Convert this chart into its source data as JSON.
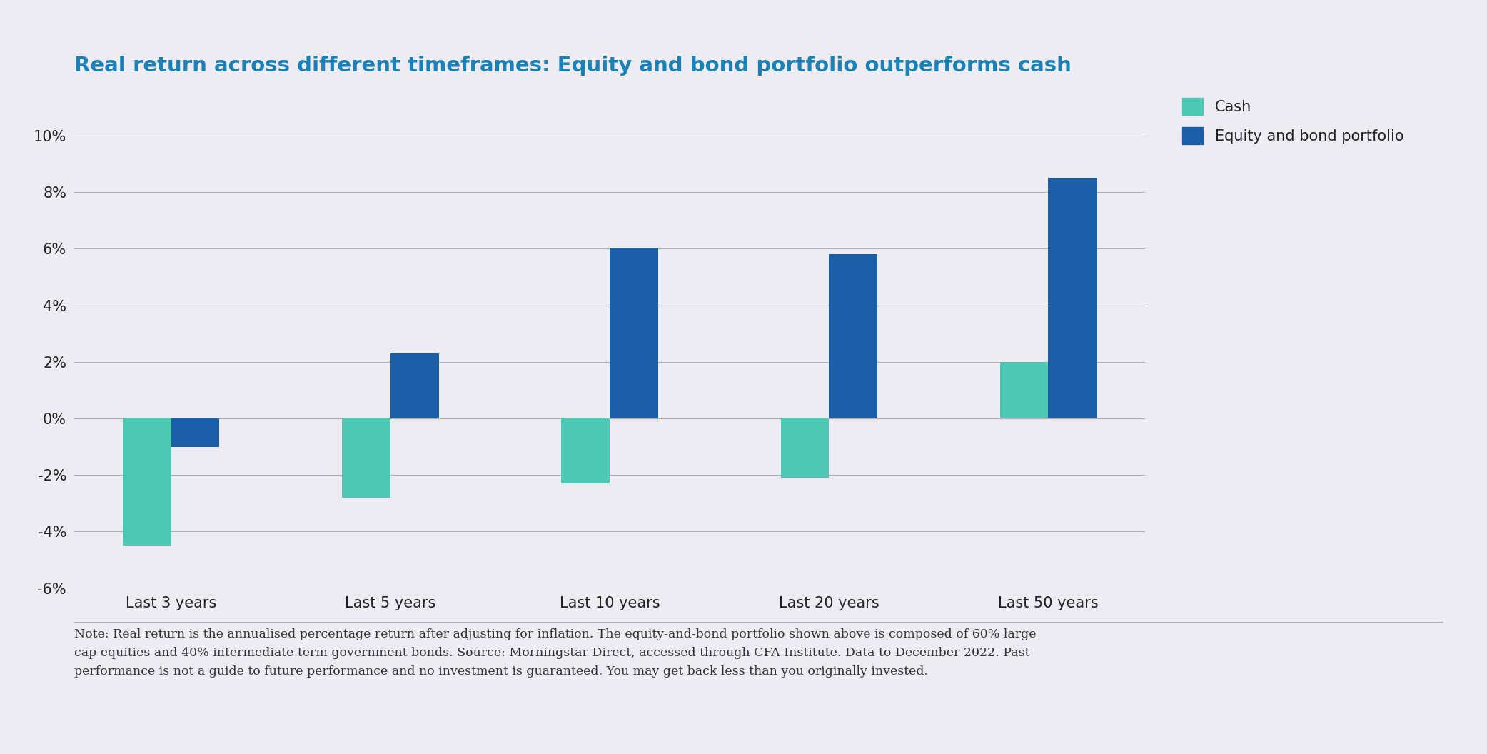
{
  "categories": [
    "Last 3 years",
    "Last 5 years",
    "Last 10 years",
    "Last 20 years",
    "Last 50 years"
  ],
  "cash_values": [
    -4.5,
    -2.8,
    -2.3,
    -2.1,
    2.0
  ],
  "equity_bond_values": [
    -1.0,
    2.3,
    6.0,
    5.8,
    8.5
  ],
  "cash_color": "#4dc8b4",
  "equity_bond_color": "#1a5fa8",
  "title": "Real return across different timeframes: Equity and bond portfolio outperforms cash",
  "title_color": "#1a80b8",
  "background_color": "#eeecf3",
  "ylim": [
    -6,
    10
  ],
  "yticks": [
    -6,
    -4,
    -2,
    0,
    2,
    4,
    6,
    8,
    10
  ],
  "ytick_labels": [
    "-6%",
    "-4%",
    "-2%",
    "0%",
    "2%",
    "4%",
    "6%",
    "8%",
    "10%"
  ],
  "legend_cash": "Cash",
  "legend_equity": "Equity and bond portfolio",
  "footnote_line1": "Note: Real return is the annualised percentage return after adjusting for inflation. The equity-and-bond portfolio shown above is composed of 60% large",
  "footnote_line2": "cap equities and 40% intermediate term government bonds. Source: Morningstar Direct, accessed through CFA Institute. Data to December 2022. Past",
  "footnote_line3": "performance is not a guide to future performance and no investment is guaranteed. You may get back less than you originally invested.",
  "bar_width": 0.22,
  "grid_color": "#b0b0b0",
  "axis_text_color": "#222222",
  "footnote_color": "#333333",
  "title_fontsize": 21,
  "tick_fontsize": 15,
  "footnote_fontsize": 12.5
}
